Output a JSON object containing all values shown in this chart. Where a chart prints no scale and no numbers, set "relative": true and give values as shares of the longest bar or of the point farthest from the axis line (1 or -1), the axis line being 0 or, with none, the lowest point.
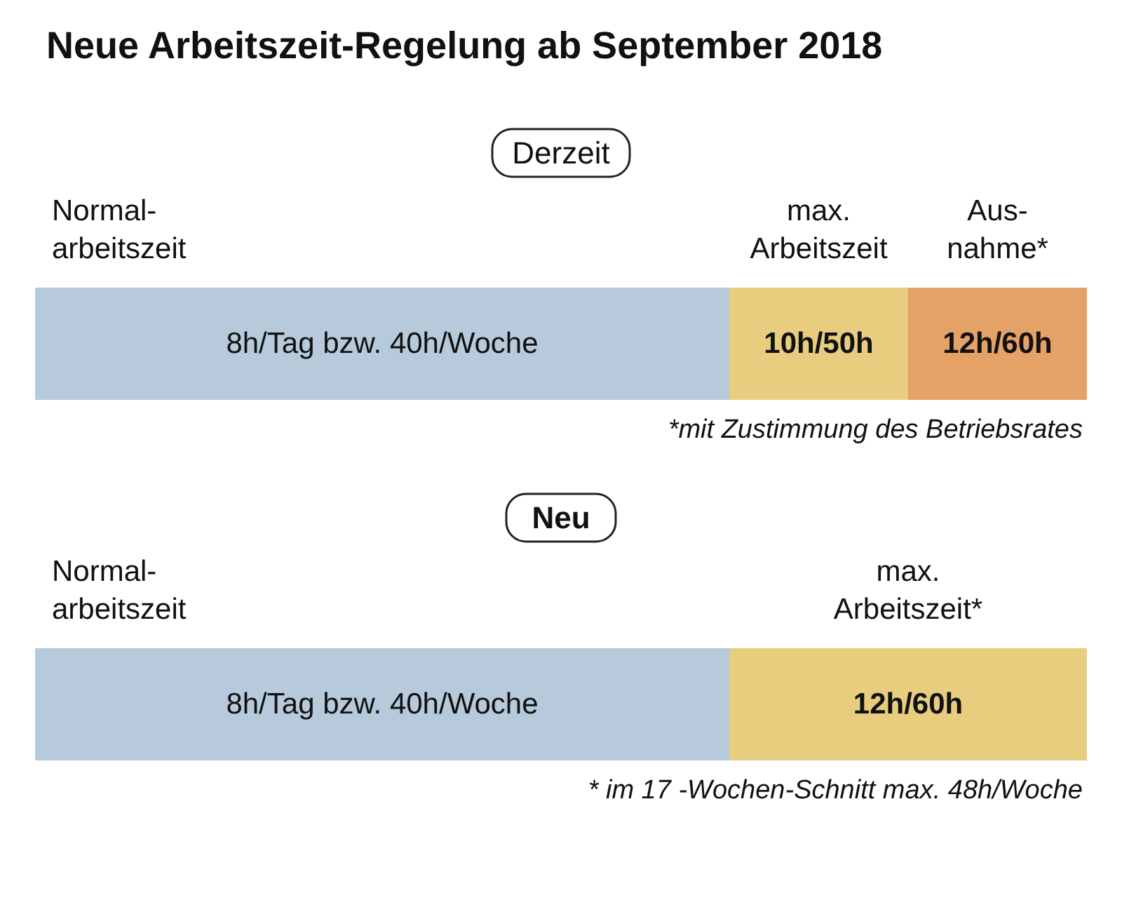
{
  "chart_data": [
    {
      "type": "bar",
      "orientation": "horizontal",
      "stacked": true,
      "relative": true,
      "title": "Neue Arbeitszeit-Regelung ab September 2018",
      "subtitle": "Derzeit",
      "categories": [
        null
      ],
      "series": [
        {
          "name": "Normal-\narbeitszeit",
          "color": "#b7cadb",
          "values": [
            0.66
          ]
        },
        {
          "name": "max.\nArbeitszeit",
          "color": "#e8cd7e",
          "values": [
            0.17
          ]
        },
        {
          "name": "Aus-\nnahme*",
          "color": "#e5a267",
          "values": [
            0.17
          ]
        }
      ],
      "annotations": [
        "8h/Tag bzw. 40h/Woche",
        "10h/50h",
        "12h/60h",
        "*mit Zustimmung des Betriebsrates"
      ]
    },
    {
      "type": "bar",
      "orientation": "horizontal",
      "stacked": true,
      "relative": true,
      "title": "Neu",
      "categories": [
        null
      ],
      "series": [
        {
          "name": "Normal-\narbeitszeit",
          "color": "#b7cadb",
          "values": [
            0.66
          ]
        },
        {
          "name": "max.\nArbeitszeit*",
          "color": "#e8cd7e",
          "values": [
            0.34
          ]
        }
      ],
      "annotations": [
        "8h/Tag bzw. 40h/Woche",
        "12h/60h",
        "* im 17 -Wochen-Schnitt max. 48h/Woche"
      ]
    }
  ]
}
